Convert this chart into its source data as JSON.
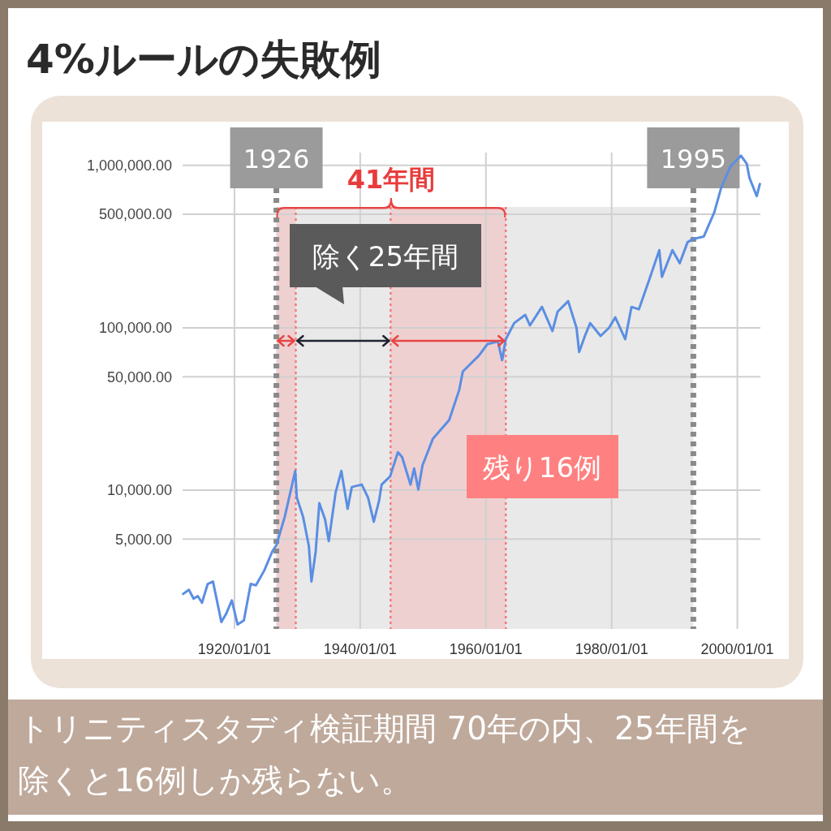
{
  "chart_data": {
    "type": "line",
    "title": "4%ルールの失敗例",
    "x": [
      "1911-11",
      "1912-10",
      "1913-07",
      "1914-03",
      "1914-11",
      "1915-10",
      "1916-08",
      "1917-12",
      "1918-09",
      "1919-08",
      "1920-07",
      "1921-07",
      "1922-08",
      "1923-06",
      "1924-10",
      "1926-01",
      "1926-09",
      "1928-01",
      "1929-09",
      "1929-12",
      "1930-12",
      "1931-11",
      "1932-04",
      "1932-12",
      "1933-07",
      "1934-06",
      "1935-01",
      "1936-02",
      "1937-01",
      "1938-01",
      "1938-09",
      "1940-04",
      "1941-04",
      "1942-03",
      "1943-01",
      "1943-06",
      "1944-10",
      "1946-01",
      "1946-09",
      "1948-01",
      "1948-08",
      "1949-04",
      "1949-12",
      "1950-08",
      "1951-08",
      "1953-07",
      "1954-03",
      "1955-10",
      "1956-05",
      "1958-12",
      "1960-04",
      "1961-12",
      "1962-08",
      "1963-03",
      "1964-07",
      "1966-04",
      "1967-01",
      "1968-12",
      "1970-08",
      "1971-06",
      "1973-02",
      "1974-06",
      "1974-11",
      "1975-10",
      "1976-08",
      "1978-04",
      "1979-08",
      "1980-08",
      "1982-03",
      "1983-03",
      "1984-05",
      "1986-01",
      "1987-08",
      "1988-01",
      "1989-09",
      "1990-11",
      "1992-02",
      "1992-12",
      "1994-09",
      "1996-05",
      "1997-06",
      "1998-12",
      "2000-08",
      "2001-07",
      "2001-12",
      "2003-02",
      "2003-08"
    ],
    "series": [
      {
        "color": "#5b8ee3",
        "values": [
          2300,
          2440,
          2150,
          2230,
          2030,
          2650,
          2740,
          1545,
          1730,
          2100,
          1490,
          1580,
          2650,
          2600,
          3210,
          4190,
          4590,
          6860,
          13150,
          9020,
          6860,
          4540,
          2740,
          4190,
          8320,
          6620,
          4860,
          9660,
          13150,
          7690,
          10470,
          10840,
          9020,
          6400,
          8610,
          10840,
          12160,
          17150,
          16000,
          10840,
          13620,
          10110,
          14260,
          16560,
          20810,
          25290,
          27100,
          41400,
          53850,
          67750,
          79500,
          82300,
          63200,
          85100,
          107000,
          120200,
          103500,
          134600,
          95500,
          125900,
          146000,
          100000,
          71000,
          89100,
          107000,
          89100,
          100000,
          116100,
          85100,
          134600,
          130000,
          199000,
          301000,
          206000,
          301000,
          250000,
          337000,
          352000,
          365000,
          514000,
          726000,
          989000,
          1148000,
          1023000,
          841000,
          647000,
          769000
        ]
      }
    ],
    "log": true,
    "grid": true,
    "marker": "none",
    "line_style": "solid",
    "xlim": [
      "1911-10",
      "2003-09"
    ],
    "xticks": [
      {
        "value": "1920-01-01",
        "label": "1920/01/01"
      },
      {
        "value": "1940-01-01",
        "label": "1940/01/01"
      },
      {
        "value": "1960-01-01",
        "label": "1960/01/01"
      },
      {
        "value": "1980-01-01",
        "label": "1980/01/01"
      },
      {
        "value": "2000-01-01",
        "label": "2000/01/01"
      }
    ],
    "ylim": [
      1400,
      1200000
    ],
    "yticks": [
      {
        "value": 5000,
        "label": "5,000.00"
      },
      {
        "value": 10000,
        "label": "10,000.00"
      },
      {
        "value": 50000,
        "label": "50,000.00"
      },
      {
        "value": 100000,
        "label": "100,000.00"
      },
      {
        "value": 500000,
        "label": "500,000.00"
      },
      {
        "value": 1000000,
        "label": "1,000,000.00"
      }
    ],
    "bands": [
      {
        "axis": "x",
        "from": "1926-09",
        "to": "1993-01",
        "color": "#e9e9e9"
      },
      {
        "axis": "x",
        "from": "1926-09",
        "to": "1929-10",
        "color": "#efcbcc"
      },
      {
        "axis": "x",
        "from": "1944-11",
        "to": "1963-03",
        "color": "#efcbcc"
      }
    ],
    "ref_lines": [
      {
        "axis": "x",
        "value": "1926-09",
        "label": "1926",
        "color": "#8a8a8a",
        "line_style": "dashed"
      },
      {
        "axis": "x",
        "value": "1993-01",
        "label": "1995",
        "color": "#8a8a8a",
        "line_style": "dashed"
      },
      {
        "axis": "x",
        "value": "1929-10",
        "color": "#f27b7b",
        "line_style": "dotted"
      },
      {
        "axis": "x",
        "value": "1944-11",
        "color": "#f27b7b",
        "line_style": "dotted"
      },
      {
        "axis": "x",
        "value": "1963-03",
        "color": "#f27b7b",
        "line_style": "dotted"
      }
    ],
    "annotations": [
      "41年間",
      "除く25年間",
      "残り16例",
      "トリニティスタディ検証期間 70年の内、25年間を除くと16例しか残らない。"
    ]
  }
}
